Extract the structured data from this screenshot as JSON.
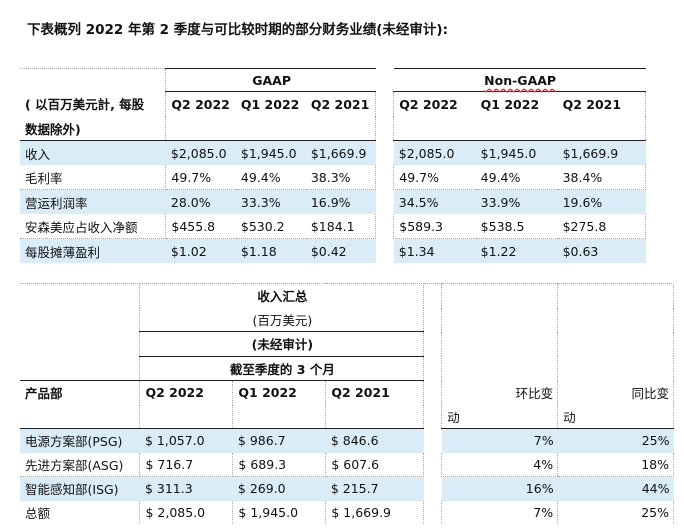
{
  "title": "下表概列 2022 年第 2 季度与可比较时期的部分财务业绩(未经审计):",
  "table1": {
    "gaap_label": "GAAP",
    "nongaap_label": "Non-GAAP",
    "unit_line1": "( 以百万美元計, 每股",
    "unit_line2": "数据除外)",
    "periods": [
      "Q2 2022",
      "Q1 2022",
      "Q2 2021",
      "Q2 2022",
      "Q1 2022",
      "Q2 2021"
    ],
    "rows": [
      {
        "label": "收入",
        "values": [
          "$2,085.0",
          "$1,945.0",
          "$1,669.9",
          "$2,085.0",
          "$1,945.0",
          "$1,669.9"
        ]
      },
      {
        "label": "毛利率",
        "values": [
          "49.7%",
          "49.4%",
          "38.3%",
          "49.7%",
          "49.4%",
          "38.4%"
        ]
      },
      {
        "label": "营运利润率",
        "values": [
          "28.0%",
          "33.3%",
          "16.9%",
          "34.5%",
          "33.9%",
          "19.6%"
        ]
      },
      {
        "label": "安森美应占收入净额",
        "values": [
          "$455.8",
          "$530.2",
          "$184.1",
          "$589.3",
          "$538.5",
          "$275.8"
        ]
      },
      {
        "label": "每股摊薄盈利",
        "values": [
          "$1.02",
          "$1.18",
          "$0.42",
          "$1.34",
          "$1.22",
          "$0.63"
        ]
      }
    ]
  },
  "table2": {
    "heading1": "收入汇总",
    "heading2": "(百万美元)",
    "heading3": "(未经审计)",
    "heading4": "截至季度的 3 个月",
    "col_product": "产品部",
    "periods": [
      "Q2 2022",
      "Q1 2022",
      "Q2 2021"
    ],
    "qoq_label": "环比变",
    "yoy_label": "同比变",
    "change_suffix": "动",
    "rows": [
      {
        "label": "电源方案部(PSG)",
        "values": [
          "$ 1,057.0",
          "$ 986.7",
          "$ 846.6"
        ],
        "qoq": "7%",
        "yoy": "25%"
      },
      {
        "label": "先进方案部(ASG)",
        "values": [
          "$ 716.7",
          "$ 689.3",
          "$ 607.6"
        ],
        "qoq": "4%",
        "yoy": "18%"
      },
      {
        "label": "智能感知部(ISG)",
        "values": [
          "$ 311.3",
          "$ 269.0",
          "$ 215.7"
        ],
        "qoq": "16%",
        "yoy": "44%"
      },
      {
        "label": "总额",
        "values": [
          "$ 2,085.0",
          "$ 1,945.0",
          "$ 1,669.9"
        ],
        "qoq": "7%",
        "yoy": "25%"
      }
    ]
  },
  "colors": {
    "row_highlight": "#d9ecf8",
    "spell_underline": "#dd2233"
  }
}
